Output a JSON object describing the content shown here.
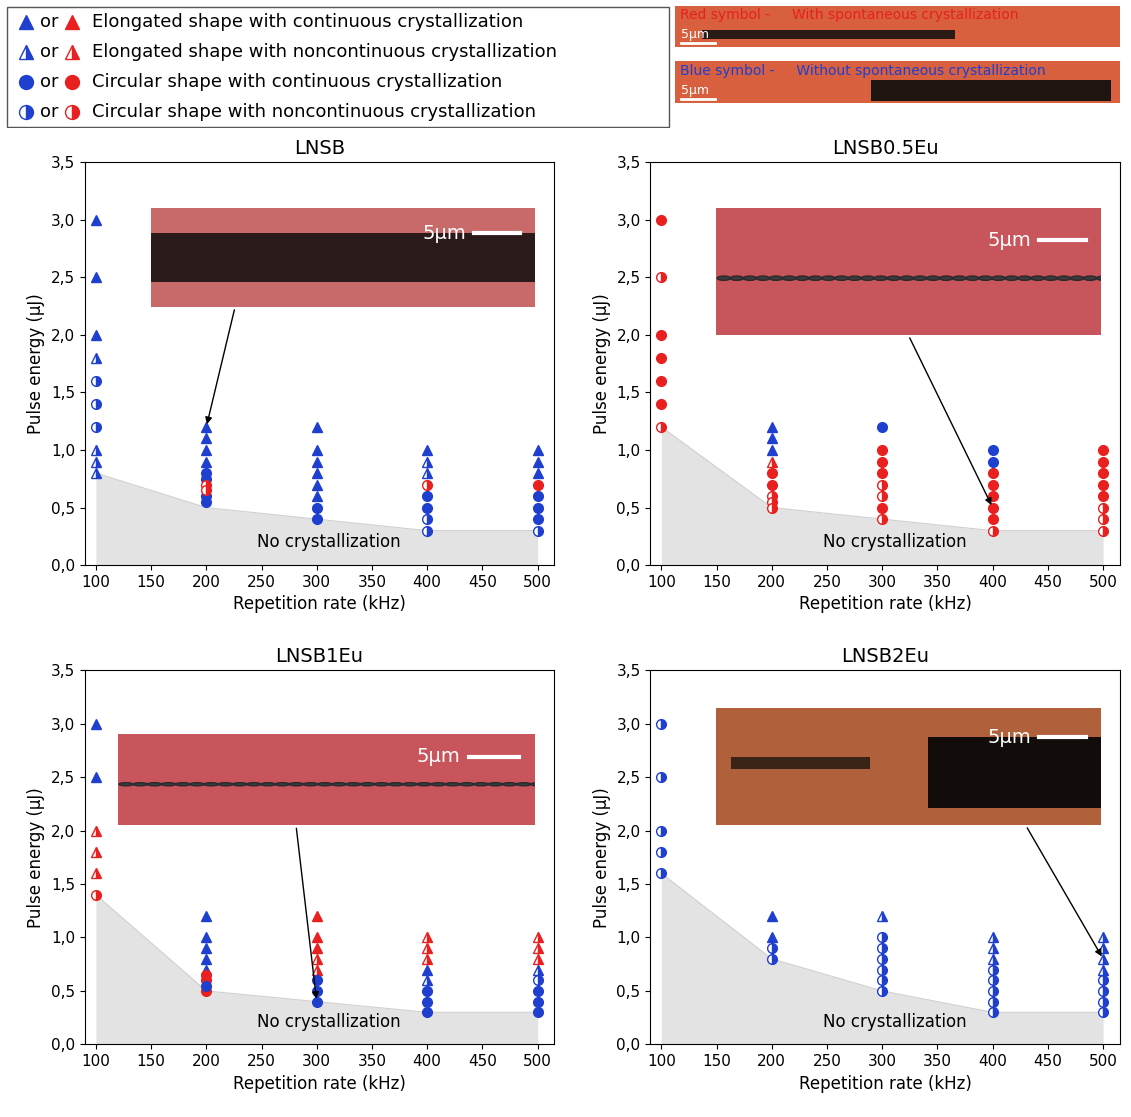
{
  "legend_box": {
    "joiner": "or",
    "entries": [
      {
        "marker": "triangle",
        "text": "Elongated shape with continuous crystallization"
      },
      {
        "marker": "triangle_half",
        "text": "Elongated shape with noncontinuous crystallization"
      },
      {
        "marker": "circle",
        "text": "Circular shape with continuous crystallization"
      },
      {
        "marker": "circle_half",
        "text": "Circular shape with noncontinuous crystallization"
      }
    ]
  },
  "symbol_key": [
    {
      "label": "Red symbol -",
      "text": "With spontaneous crystallization",
      "color": "#e8201f",
      "scale_bar": "5µm"
    },
    {
      "label": "Blue symbol -",
      "text": "Without spontaneous crystallization",
      "color": "#1f3fcf",
      "scale_bar": "5µm"
    }
  ],
  "chart_data": [
    {
      "type": "scatter",
      "title": "LNSB",
      "x_label": "Repetition rate (kHz)",
      "y_label": "Pulse energy (µJ)",
      "xlim": [
        90,
        515
      ],
      "xticks": [
        100,
        150,
        200,
        250,
        300,
        350,
        400,
        450,
        500
      ],
      "ylim": [
        0,
        3.5
      ],
      "yticks": [
        {
          "value": 0,
          "label": "0,0"
        },
        {
          "value": 0.5,
          "label": "0,5"
        },
        {
          "value": 1,
          "label": "1,0"
        },
        {
          "value": 1.5,
          "label": "1,5"
        },
        {
          "value": 2,
          "label": "2,0"
        },
        {
          "value": 2.5,
          "label": "2,5"
        },
        {
          "value": 3,
          "label": "3,0"
        },
        {
          "value": 3.5,
          "label": "3,5"
        }
      ],
      "no_crystallization": {
        "label": "No crystallization",
        "x": [
          100,
          200,
          300,
          400,
          500
        ],
        "values": [
          0.8,
          0.5,
          0.4,
          0.3,
          0.3
        ]
      },
      "inset": {
        "scale_bar": "5µm",
        "points_to": [
          200,
          1.2
        ]
      },
      "series": [
        {
          "color": "#1f3fcf",
          "marker": "triangle",
          "x": [
            100,
            100,
            100,
            200,
            200,
            200,
            200,
            300,
            300,
            300,
            300,
            300,
            300,
            400,
            500,
            500,
            500
          ],
          "values": [
            3.0,
            2.5,
            2.0,
            1.2,
            1.1,
            1.0,
            0.9,
            1.2,
            1.0,
            0.9,
            0.8,
            0.7,
            0.6,
            1.0,
            1.0,
            0.9,
            0.8
          ]
        },
        {
          "color": "#1f3fcf",
          "marker": "triangle_half",
          "x": [
            100,
            100,
            100,
            100,
            400,
            400
          ],
          "values": [
            1.8,
            1.0,
            0.9,
            0.8,
            0.9,
            0.8
          ]
        },
        {
          "color": "#1f3fcf",
          "marker": "circle_half",
          "x": [
            100,
            100,
            100,
            400,
            400,
            500
          ],
          "values": [
            1.6,
            1.4,
            1.2,
            0.4,
            0.3,
            0.3
          ]
        },
        {
          "color": "#1f3fcf",
          "marker": "circle",
          "x": [
            200,
            200,
            200,
            200,
            300,
            300,
            400,
            400,
            500,
            500,
            500
          ],
          "values": [
            0.8,
            0.75,
            0.6,
            0.55,
            0.5,
            0.4,
            0.6,
            0.5,
            0.6,
            0.5,
            0.4
          ]
        },
        {
          "color": "#e8201f",
          "marker": "circle_half",
          "x": [
            200,
            200,
            400
          ],
          "values": [
            0.7,
            0.65,
            0.7
          ]
        },
        {
          "color": "#e8201f",
          "marker": "circle",
          "x": [
            500
          ],
          "values": [
            0.7
          ]
        }
      ]
    },
    {
      "type": "scatter",
      "title": "LNSB0.5Eu",
      "x_label": "Repetition rate (kHz)",
      "y_label": "Pulse energy (µJ)",
      "xlim": [
        90,
        515
      ],
      "xticks": [
        100,
        150,
        200,
        250,
        300,
        350,
        400,
        450,
        500
      ],
      "ylim": [
        0,
        3.5
      ],
      "yticks": [
        {
          "value": 0,
          "label": "0,0"
        },
        {
          "value": 0.5,
          "label": "0,5"
        },
        {
          "value": 1,
          "label": "1,0"
        },
        {
          "value": 1.5,
          "label": "1,5"
        },
        {
          "value": 2,
          "label": "2,0"
        },
        {
          "value": 2.5,
          "label": "2,5"
        },
        {
          "value": 3,
          "label": "3,0"
        },
        {
          "value": 3.5,
          "label": "3,5"
        }
      ],
      "no_crystallization": {
        "label": "No crystallization",
        "x": [
          100,
          200,
          300,
          400,
          500
        ],
        "values": [
          1.2,
          0.5,
          0.4,
          0.3,
          0.3
        ]
      },
      "inset": {
        "scale_bar": "5µm",
        "points_to": [
          400,
          0.5
        ]
      },
      "series": [
        {
          "color": "#e8201f",
          "marker": "circle",
          "x": [
            100,
            100,
            100,
            100,
            100,
            200,
            200,
            300,
            300,
            300,
            300,
            400,
            400,
            400,
            400,
            400,
            500,
            500,
            500,
            500,
            500
          ],
          "values": [
            3.0,
            2.0,
            1.8,
            1.6,
            1.4,
            0.8,
            0.7,
            1.0,
            0.9,
            0.8,
            0.5,
            0.8,
            0.7,
            0.6,
            0.5,
            0.4,
            1.0,
            0.9,
            0.8,
            0.7,
            0.6
          ]
        },
        {
          "color": "#e8201f",
          "marker": "circle_half",
          "x": [
            100,
            100,
            200,
            200,
            200,
            300,
            300,
            300,
            400,
            500,
            500,
            500
          ],
          "values": [
            2.5,
            1.2,
            0.6,
            0.55,
            0.5,
            0.7,
            0.6,
            0.4,
            0.3,
            0.5,
            0.4,
            0.3
          ]
        },
        {
          "color": "#1f3fcf",
          "marker": "triangle",
          "x": [
            200,
            200,
            200
          ],
          "values": [
            1.2,
            1.1,
            1.0
          ]
        },
        {
          "color": "#e8201f",
          "marker": "triangle_half",
          "x": [
            200
          ],
          "values": [
            0.9
          ]
        },
        {
          "color": "#1f3fcf",
          "marker": "circle",
          "x": [
            300,
            400,
            400
          ],
          "values": [
            1.2,
            1.0,
            0.9
          ]
        }
      ]
    },
    {
      "type": "scatter",
      "title": "LNSB1Eu",
      "x_label": "Repetition rate (kHz)",
      "y_label": "Pulse energy (µJ)",
      "xlim": [
        90,
        515
      ],
      "xticks": [
        100,
        150,
        200,
        250,
        300,
        350,
        400,
        450,
        500
      ],
      "ylim": [
        0,
        3.5
      ],
      "yticks": [
        {
          "value": 0,
          "label": "0,0"
        },
        {
          "value": 0.5,
          "label": "0,5"
        },
        {
          "value": 1,
          "label": "1,0"
        },
        {
          "value": 1.5,
          "label": "1,5"
        },
        {
          "value": 2,
          "label": "2,0"
        },
        {
          "value": 2.5,
          "label": "2,5"
        },
        {
          "value": 3,
          "label": "3,0"
        },
        {
          "value": 3.5,
          "label": "3,5"
        }
      ],
      "no_crystallization": {
        "label": "No crystallization",
        "x": [
          100,
          200,
          300,
          400,
          500
        ],
        "values": [
          1.4,
          0.5,
          0.4,
          0.3,
          0.3
        ]
      },
      "inset": {
        "scale_bar": "5µm",
        "points_to": [
          300,
          0.4
        ]
      },
      "series": [
        {
          "color": "#1f3fcf",
          "marker": "triangle",
          "x": [
            100,
            100,
            200,
            200,
            200,
            200,
            200,
            400
          ],
          "values": [
            3.0,
            2.5,
            1.2,
            1.0,
            0.9,
            0.8,
            0.7,
            0.7
          ]
        },
        {
          "color": "#e8201f",
          "marker": "triangle_half",
          "x": [
            100,
            100,
            100,
            300,
            300,
            400,
            400,
            400,
            500,
            500,
            500
          ],
          "values": [
            2.0,
            1.8,
            1.6,
            0.8,
            0.7,
            1.0,
            0.9,
            0.8,
            1.0,
            0.9,
            0.8
          ]
        },
        {
          "color": "#e8201f",
          "marker": "circle_half",
          "x": [
            100
          ],
          "values": [
            1.4
          ]
        },
        {
          "color": "#e8201f",
          "marker": "circle",
          "x": [
            200,
            200,
            200
          ],
          "values": [
            0.65,
            0.6,
            0.5
          ]
        },
        {
          "color": "#1f3fcf",
          "marker": "circle",
          "x": [
            200,
            300,
            300,
            300,
            400,
            400,
            400,
            500,
            500,
            500
          ],
          "values": [
            0.55,
            0.6,
            0.5,
            0.4,
            0.5,
            0.4,
            0.3,
            0.5,
            0.4,
            0.3
          ]
        },
        {
          "color": "#e8201f",
          "marker": "triangle",
          "x": [
            300,
            300,
            300
          ],
          "values": [
            1.2,
            1.0,
            0.9
          ]
        },
        {
          "color": "#1f3fcf",
          "marker": "triangle_half",
          "x": [
            400,
            500
          ],
          "values": [
            0.6,
            0.7
          ]
        },
        {
          "color": "#1f3fcf",
          "marker": "circle_half",
          "x": [
            500
          ],
          "values": [
            0.6
          ]
        }
      ]
    },
    {
      "type": "scatter",
      "title": "LNSB2Eu",
      "x_label": "Repetition rate (kHz)",
      "y_label": "Pulse energy (µJ)",
      "xlim": [
        90,
        515
      ],
      "xticks": [
        100,
        150,
        200,
        250,
        300,
        350,
        400,
        450,
        500
      ],
      "ylim": [
        0,
        3.5
      ],
      "yticks": [
        {
          "value": 0,
          "label": "0,0"
        },
        {
          "value": 0.5,
          "label": "0,5"
        },
        {
          "value": 1,
          "label": "1,0"
        },
        {
          "value": 1.5,
          "label": "1,5"
        },
        {
          "value": 2,
          "label": "2,0"
        },
        {
          "value": 2.5,
          "label": "2,5"
        },
        {
          "value": 3,
          "label": "3,0"
        },
        {
          "value": 3.5,
          "label": "3,5"
        }
      ],
      "no_crystallization": {
        "label": "No crystallization",
        "x": [
          100,
          200,
          300,
          400,
          500
        ],
        "values": [
          1.6,
          0.8,
          0.5,
          0.3,
          0.3
        ]
      },
      "inset": {
        "scale_bar": "5µm",
        "points_to": [
          500,
          0.8
        ]
      },
      "series": [
        {
          "color": "#1f3fcf",
          "marker": "circle_half",
          "x": [
            100,
            100,
            100,
            100,
            100,
            200,
            200,
            300,
            300,
            300,
            300,
            300,
            300,
            400,
            400,
            400,
            400,
            400,
            500,
            500,
            500,
            500
          ],
          "values": [
            3.0,
            2.5,
            2.0,
            1.8,
            1.6,
            0.9,
            0.8,
            1.0,
            0.9,
            0.8,
            0.7,
            0.6,
            0.5,
            0.7,
            0.6,
            0.5,
            0.4,
            0.3,
            0.6,
            0.5,
            0.4,
            0.3
          ]
        },
        {
          "color": "#1f3fcf",
          "marker": "triangle",
          "x": [
            200,
            200
          ],
          "values": [
            1.2,
            1.0
          ]
        },
        {
          "color": "#1f3fcf",
          "marker": "triangle_half",
          "x": [
            300,
            400,
            400,
            400,
            500,
            500,
            500,
            500
          ],
          "values": [
            1.2,
            1.0,
            0.9,
            0.8,
            1.0,
            0.9,
            0.8,
            0.7
          ]
        }
      ]
    }
  ]
}
